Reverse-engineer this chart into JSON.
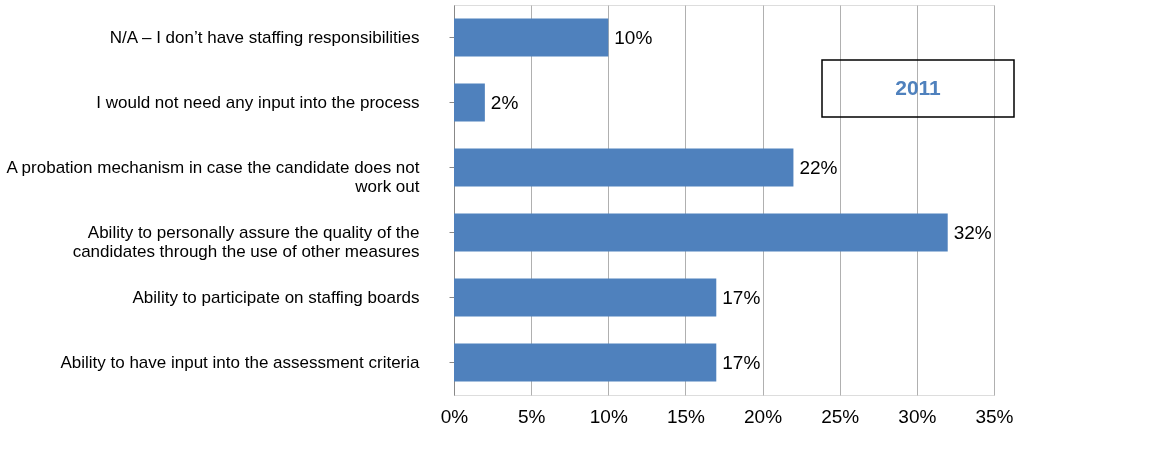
{
  "chart_data": {
    "type": "bar",
    "orientation": "horizontal",
    "categories": [
      "N/A – I don’t have staffing responsibilities",
      "I would not need any input into the process",
      "A probation mechanism in case the candidate does not work out",
      "Ability to personally assure the quality of the candidates through the use of other measures",
      "Ability to participate on staffing boards",
      "Ability to have input into the assessment criteria"
    ],
    "series": [
      {
        "color": "#4f81bd",
        "values": [
          10,
          2,
          22,
          32,
          17,
          17
        ],
        "value_labels": [
          "10%",
          "2%",
          "22%",
          "32%",
          "17%",
          "17%"
        ]
      }
    ],
    "xlim": [
      0,
      35
    ],
    "xticks": [
      {
        "value": 0,
        "label": "0%"
      },
      {
        "value": 5,
        "label": "5%"
      },
      {
        "value": 10,
        "label": "10%"
      },
      {
        "value": 15,
        "label": "15%"
      },
      {
        "value": 20,
        "label": "20%"
      },
      {
        "value": 25,
        "label": "25%"
      },
      {
        "value": 30,
        "label": "30%"
      },
      {
        "value": 35,
        "label": "35%"
      }
    ],
    "grid": "x",
    "annotations": [
      "2011"
    ]
  }
}
